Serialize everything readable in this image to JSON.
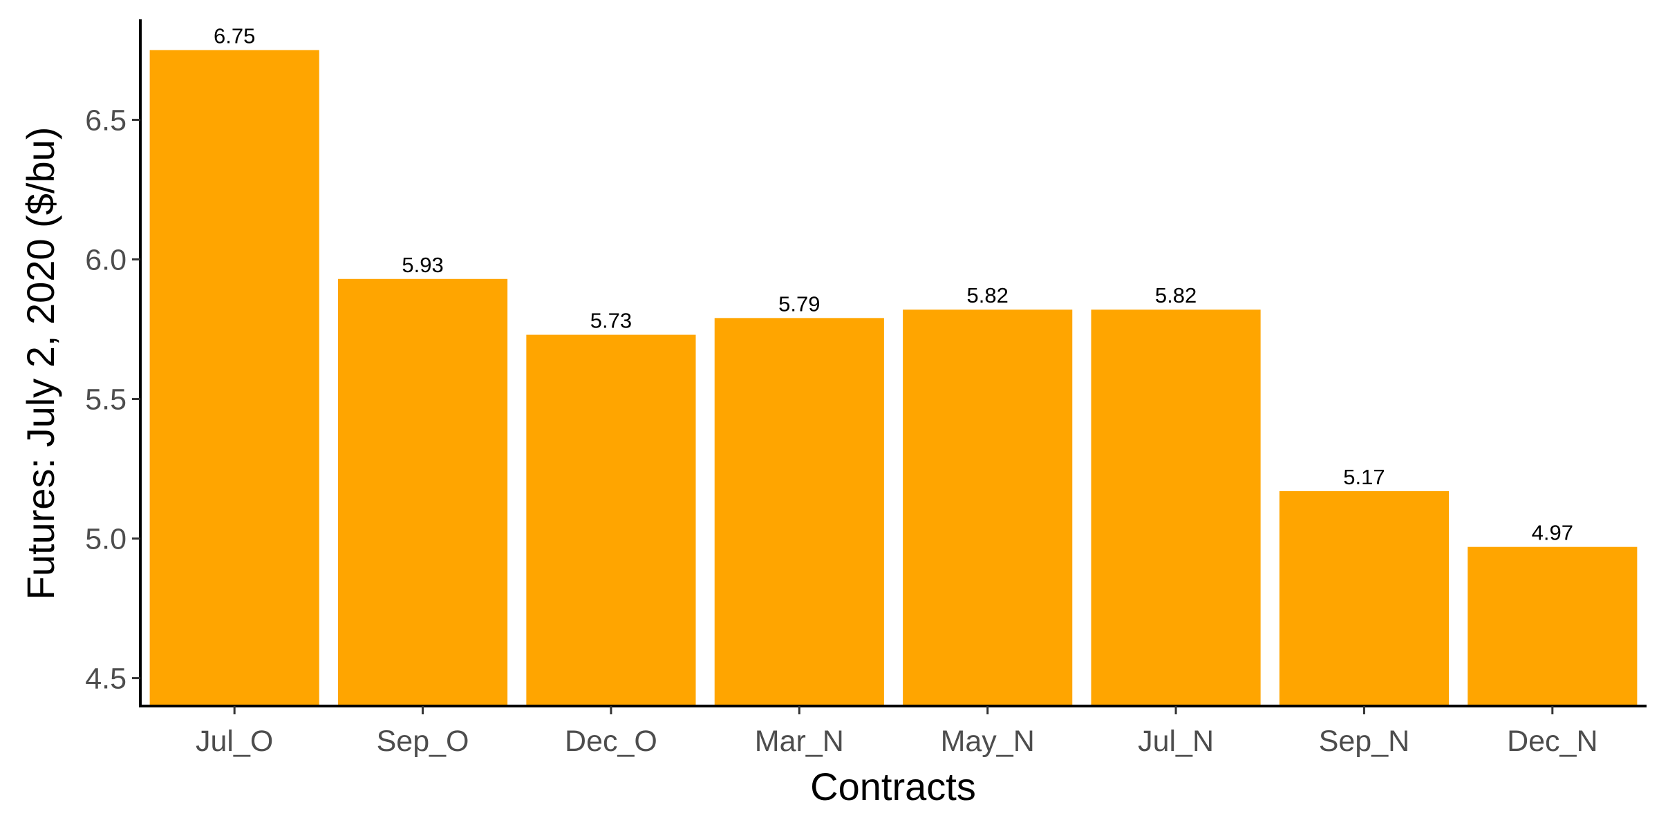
{
  "chart_data": {
    "type": "bar",
    "categories": [
      "Jul_O",
      "Sep_O",
      "Dec_O",
      "Mar_N",
      "May_N",
      "Jul_N",
      "Sep_N",
      "Dec_N"
    ],
    "values": [
      6.75,
      5.93,
      5.73,
      5.79,
      5.82,
      5.82,
      5.17,
      4.97
    ],
    "data_labels": [
      "6.75",
      "5.93",
      "5.73",
      "5.79",
      "5.82",
      "5.82",
      "5.17",
      "4.97"
    ],
    "xlabel": "Contracts",
    "ylabel": "Futures: July 2, 2020 ($/bu)",
    "ylim": [
      4.4,
      6.86
    ],
    "yticks": [
      4.5,
      5.0,
      5.5,
      6.0,
      6.5
    ],
    "ytick_labels": [
      "4.5",
      "5.0",
      "5.5",
      "6.0",
      "6.5"
    ],
    "bar_color": "#FFA500",
    "grid": false,
    "legend": "none"
  }
}
